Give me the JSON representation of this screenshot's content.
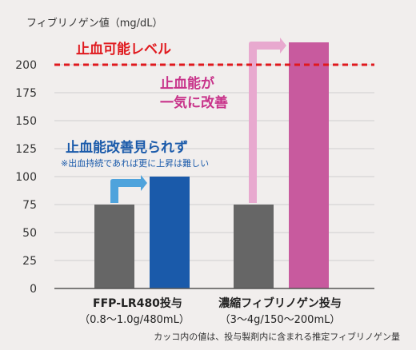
{
  "chart_data": {
    "type": "bar",
    "ylabel": "フィブリノゲン値（mg/dL）",
    "ylim": [
      0,
      225
    ],
    "yticks": [
      0,
      25,
      50,
      75,
      100,
      125,
      150,
      175,
      200
    ],
    "grid": true,
    "groups": [
      {
        "label": "FFP-LR480投与",
        "sublabel": "（0.8～1.0g/480mL）",
        "values": [
          75,
          100
        ],
        "colors": [
          "#666666",
          "#1a5aaa"
        ]
      },
      {
        "label": "濃縮フィブリノゲン投与",
        "sublabel": "（3～4g/150～200mL）",
        "values": [
          75,
          220
        ],
        "colors": [
          "#666666",
          "#c85a9e"
        ]
      }
    ],
    "reference_line": {
      "value": 200,
      "label": "止血可能レベル",
      "color": "#e0191e"
    },
    "annotations": [
      {
        "text": "止血能改善見られず",
        "color": "#1a5aaa"
      },
      {
        "text": "※出血持続であれば更に上昇は難しい",
        "color": "#1a5aaa"
      },
      {
        "text": "止血能が",
        "color": "#c8338a"
      },
      {
        "text": "一気に改善",
        "color": "#c8338a"
      }
    ],
    "arrow_colors": [
      "#4fa3dc",
      "#e8a9cf"
    ],
    "footnote": "カッコ内の値は、投与製剤内に含まれる推定フィブリノゲン量"
  }
}
